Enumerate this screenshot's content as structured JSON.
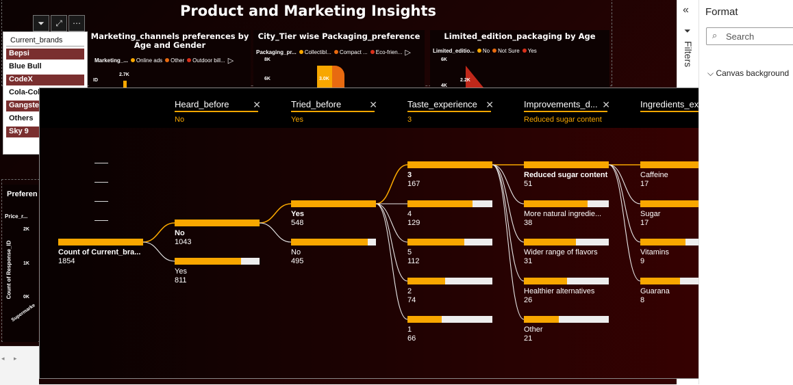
{
  "report": {
    "title": "Product and Marketing Insights"
  },
  "slicer": {
    "title": "Current_brands",
    "items": [
      {
        "label": "Bepsi",
        "selected": true
      },
      {
        "label": "Blue Bull",
        "selected": false
      },
      {
        "label": "CodeX",
        "selected": true
      },
      {
        "label": "Cola-Coka",
        "selected": false
      },
      {
        "label": "Gangster",
        "selected": true
      },
      {
        "label": "Others",
        "selected": false
      },
      {
        "label": "Sky 9",
        "selected": true
      }
    ]
  },
  "bg_charts": [
    {
      "title": "Marketing_channels preferences by Age and Gender",
      "legend_label": "Marketing_...",
      "legend": [
        "Online ads",
        "Other",
        "Outdoor bill..."
      ],
      "tick": "2.7K"
    },
    {
      "title": "City_Tier wise Packaging_preference",
      "legend_label": "Packaging_pr...",
      "legend": [
        "Collectibl...",
        "Compact ...",
        "Eco-frien..."
      ],
      "tick": "8K",
      "tick2": "6K",
      "value": "3.0K"
    },
    {
      "title": "Limited_edition_packaging by Age",
      "legend_label": "Limited_editio...",
      "legend": [
        "No",
        "Not Sure",
        "Yes"
      ],
      "tick": "6K",
      "tick2": "4K",
      "value": "2.2K"
    }
  ],
  "pref_card": {
    "title": "Preferen",
    "legend_label": "Price_r...",
    "ticks": [
      "2K",
      "1K",
      "0K"
    ],
    "ylabel": "Count of Response_ID",
    "xlabel": "Supermarke"
  },
  "colors": {
    "accent": "#f8a700",
    "bar_bg": "#ededed",
    "slicer_selected": "#7a2f2f"
  },
  "tree": {
    "levels": [
      {
        "name": "Heard_before",
        "value": "No"
      },
      {
        "name": "Tried_before",
        "value": "Yes"
      },
      {
        "name": "Taste_experience",
        "value": "3"
      },
      {
        "name": "Improvements_d...",
        "value": "Reduced sugar content"
      },
      {
        "name": "Ingredients_expe...",
        "value": ""
      }
    ],
    "root": {
      "label": "Count of Current_bra...",
      "value": "1854",
      "fraction": 1.0
    },
    "heard_before": [
      {
        "label": "No",
        "value": "1043",
        "fraction": 1.0,
        "selected": true
      },
      {
        "label": "Yes",
        "value": "811",
        "fraction": 0.78
      }
    ],
    "tried_before": [
      {
        "label": "Yes",
        "value": "548",
        "fraction": 1.0,
        "selected": true
      },
      {
        "label": "No",
        "value": "495",
        "fraction": 0.9
      }
    ],
    "taste_experience": [
      {
        "label": "3",
        "value": "167",
        "fraction": 1.0,
        "selected": true
      },
      {
        "label": "4",
        "value": "129",
        "fraction": 0.77
      },
      {
        "label": "5",
        "value": "112",
        "fraction": 0.67
      },
      {
        "label": "2",
        "value": "74",
        "fraction": 0.44
      },
      {
        "label": "1",
        "value": "66",
        "fraction": 0.4
      }
    ],
    "improvements": [
      {
        "label": "Reduced sugar content",
        "value": "51",
        "fraction": 1.0,
        "selected": true
      },
      {
        "label": "More natural ingredie...",
        "value": "38",
        "fraction": 0.75
      },
      {
        "label": "Wider range of flavors",
        "value": "31",
        "fraction": 0.61
      },
      {
        "label": "Healthier alternatives",
        "value": "26",
        "fraction": 0.51
      },
      {
        "label": "Other",
        "value": "21",
        "fraction": 0.41
      }
    ],
    "ingredients": [
      {
        "label": "Caffeine",
        "value": "17",
        "fraction": 1.0
      },
      {
        "label": "Sugar",
        "value": "17",
        "fraction": 1.0
      },
      {
        "label": "Vitamins",
        "value": "9",
        "fraction": 0.53
      },
      {
        "label": "Guarana",
        "value": "8",
        "fraction": 0.47
      }
    ]
  },
  "right_pane": {
    "filters_label": "Filters",
    "format_title": "Format",
    "search_placeholder": "Search",
    "canvas_background": "Canvas background"
  }
}
